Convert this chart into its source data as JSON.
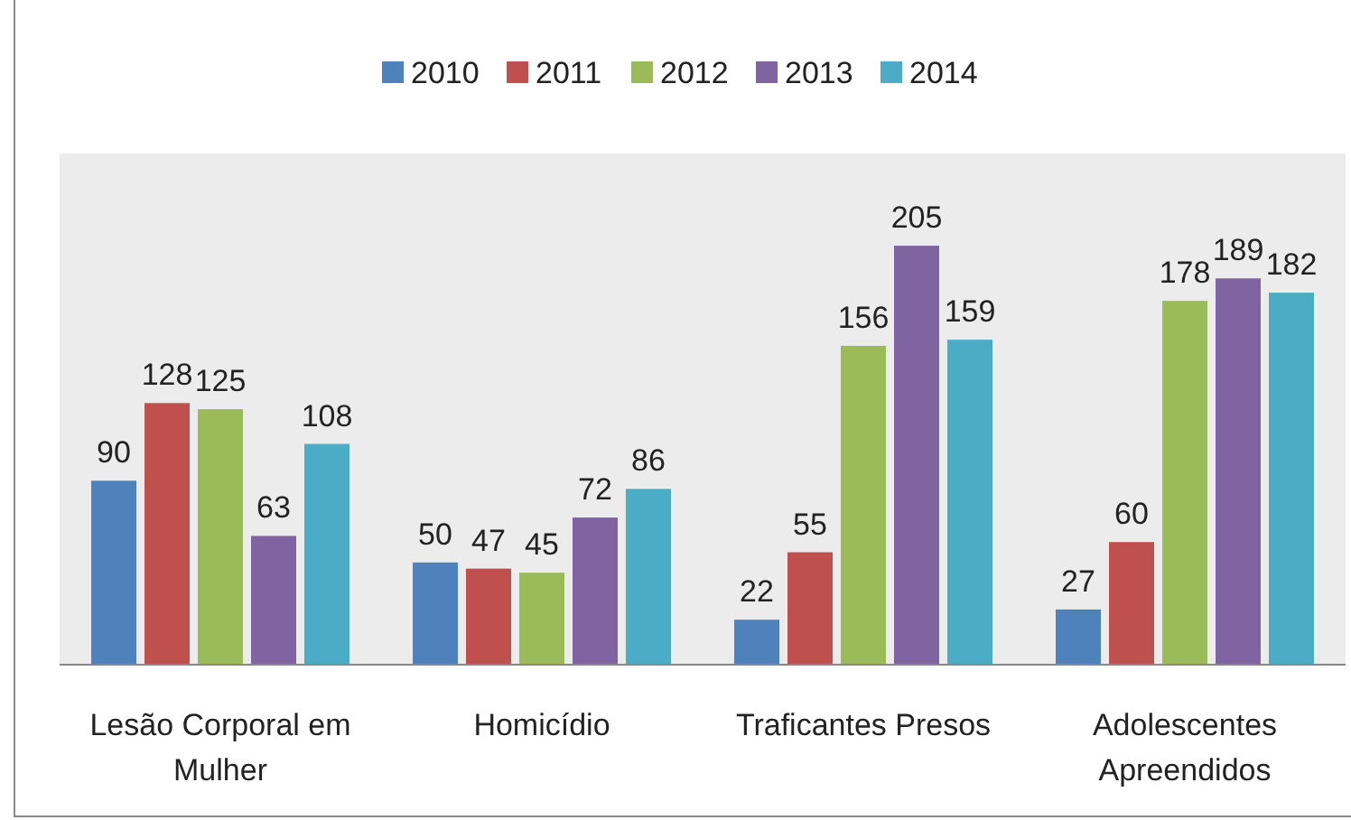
{
  "chart_data": {
    "type": "bar",
    "categories": [
      "Lesão Corporal em Mulher",
      "Homicídio",
      "Traficantes Presos",
      "Adolescentes Apreendidos"
    ],
    "series": [
      {
        "name": "2010",
        "color": "#4f81bd",
        "values": [
          90,
          50,
          22,
          27
        ]
      },
      {
        "name": "2011",
        "color": "#c0504d",
        "values": [
          128,
          47,
          55,
          60
        ]
      },
      {
        "name": "2012",
        "color": "#9bbb59",
        "values": [
          125,
          45,
          156,
          178
        ]
      },
      {
        "name": "2013",
        "color": "#8064a2",
        "values": [
          63,
          72,
          205,
          189
        ]
      },
      {
        "name": "2014",
        "color": "#4bacc6",
        "values": [
          108,
          86,
          159,
          182
        ]
      }
    ],
    "data_labels": true,
    "legend": "top",
    "grid": false
  }
}
